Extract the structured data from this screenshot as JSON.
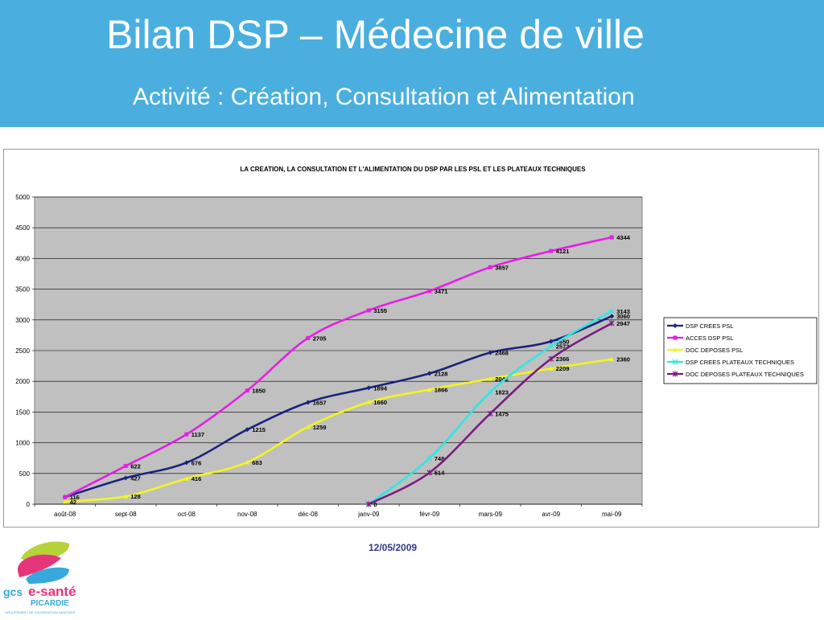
{
  "slide": {
    "title": "Bilan DSP – Médecine de ville",
    "subtitle": "Activité : Création, Consultation et Alimentation",
    "date": "12/05/2009",
    "logo": {
      "name": "gcs e-santé",
      "tagline": "PICARDIE",
      "small_text": "GROUPEMENT DE COOPÉRATION SANITAIRE"
    },
    "colors": {
      "header": "#4aafdf",
      "plot_bg": "#c0c0c0"
    }
  },
  "chart_data": {
    "type": "line",
    "title": "LA CREATION, LA CONSULTATION ET L'ALIMENTATION DU DSP PAR LES PSL ET LES PLATEAUX TECHNIQUES",
    "categories": [
      "août-08",
      "sept-08",
      "oct-08",
      "nov-08",
      "déc-08",
      "janv-09",
      "févr-09",
      "mars-09",
      "avr-09",
      "mai-09"
    ],
    "ylim": [
      0,
      5000
    ],
    "yticks": [
      0,
      500,
      1000,
      1500,
      2000,
      2500,
      3000,
      3500,
      4000,
      4500,
      5000
    ],
    "grid": true,
    "legend": "right",
    "series": [
      {
        "name": "DSP CREES PSL",
        "color": "#1a237e",
        "marker": "diamond",
        "values": [
          116,
          427,
          676,
          1215,
          1657,
          1894,
          2128,
          2468,
          2650,
          3060
        ],
        "labels": [
          "116",
          "427",
          "676",
          "1215",
          "1657",
          "1894",
          "2128",
          "2468",
          "2650",
          "3060"
        ]
      },
      {
        "name": "ACCES DSP PSL",
        "color": "#e61ee6",
        "marker": "square",
        "values": [
          116,
          622,
          1137,
          1850,
          2705,
          3155,
          3471,
          3857,
          4121,
          4344
        ],
        "labels": [
          "",
          "622",
          "1137",
          "1850",
          "2705",
          "3155",
          "3471",
          "3857",
          "4121",
          "4344"
        ]
      },
      {
        "name": "DOC DEPOSES PSL",
        "color": "#f5f51e",
        "marker": "triangle",
        "values": [
          42,
          128,
          416,
          683,
          1259,
          1660,
          1866,
          2042,
          2209,
          2360
        ],
        "labels": [
          "42",
          "128",
          "416",
          "683",
          "1259",
          "1660",
          "1866",
          "2042",
          "2209",
          "2360"
        ]
      },
      {
        "name": "DSP CREES PLATEAUX TECHNIQUES",
        "color": "#2ee6e6",
        "marker": "x",
        "values": [
          null,
          null,
          null,
          null,
          null,
          0,
          748,
          1823,
          2573,
          3143
        ],
        "labels": [
          "",
          "",
          "",
          "",
          "",
          "",
          "748",
          "1823",
          "2573",
          "3143"
        ]
      },
      {
        "name": "DOC DEPOSES PLATEAUX TECHNIQUES",
        "color": "#7a1a80",
        "marker": "star",
        "values": [
          null,
          null,
          null,
          null,
          null,
          0,
          514,
          1475,
          2366,
          2947
        ],
        "labels": [
          "",
          "",
          "",
          "",
          "",
          "0",
          "514",
          "1475",
          "2366",
          "2947"
        ]
      }
    ]
  }
}
